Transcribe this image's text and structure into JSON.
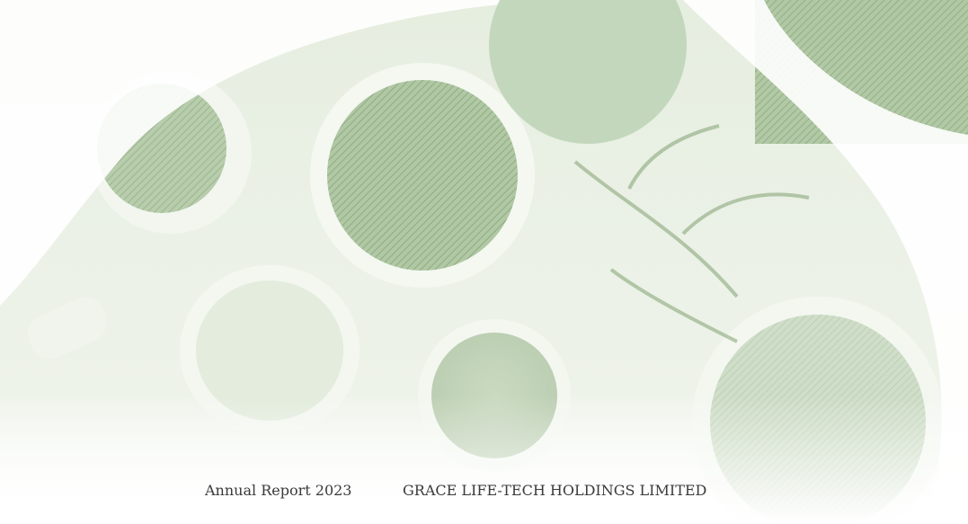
{
  "footer": {
    "report": "Annual Report 2023",
    "company": "GRACE LIFE-TECH HOLDINGS LIMITED"
  }
}
